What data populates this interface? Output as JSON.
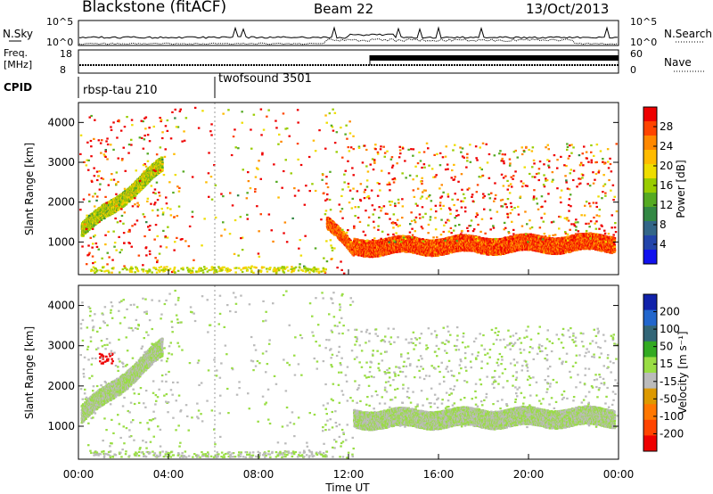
{
  "header": {
    "radar": "Blackstone (fitACF)",
    "beam": "Beam 22",
    "date": "13/Oct/2013"
  },
  "noise_panel": {
    "left_label": "N.Sky",
    "left_ticks": [
      "10^5",
      "10^0"
    ],
    "right_label": "N.Search",
    "right_ticks": [
      "10^5",
      "10^0"
    ]
  },
  "freq_panel": {
    "left_label_1": "Freq.",
    "left_label_2": "[MHz]",
    "left_ticks": [
      "18",
      "8"
    ],
    "right_label": "Nave",
    "right_ticks": [
      "60",
      "0"
    ]
  },
  "cpid_panel": {
    "label": "CPID",
    "modes": [
      {
        "name": "rbsp-tau 210",
        "start_hour": 0
      },
      {
        "name": "twofsound 3501",
        "start_hour": 6
      }
    ]
  },
  "x_axis": {
    "title": "Time UT",
    "ticks": [
      "00:00",
      "04:00",
      "08:00",
      "12:00",
      "16:00",
      "20:00",
      "00:00"
    ]
  },
  "colorbars": {
    "power": {
      "label": "Power [dB]",
      "ticks": [
        "28",
        "24",
        "20",
        "16",
        "12",
        "8",
        "4"
      ],
      "colors": [
        "#ee0000",
        "#ff4400",
        "#ff8800",
        "#ffbb00",
        "#eedd00",
        "#99cc00",
        "#55aa22",
        "#338844",
        "#336688",
        "#2244aa",
        "#1111ee"
      ]
    },
    "velocity": {
      "label": "Velocity [m s⁻¹]",
      "ticks": [
        "200",
        "100",
        "50",
        "15",
        "-15",
        "-50",
        "-100",
        "-200"
      ],
      "colors": [
        "#1122aa",
        "#2266cc",
        "#336677",
        "#33aa22",
        "#99dd44",
        "#bbbbbb",
        "#dd9900",
        "#ff7700",
        "#ff4400",
        "#ee0000"
      ]
    }
  },
  "chart_data": [
    {
      "type": "heatmap",
      "title": "Power",
      "ylabel": "Slant Range [km]",
      "xlabel": "Time UT",
      "xlim_hours": [
        0,
        24
      ],
      "ylim_km": [
        180,
        4500
      ],
      "y_ticks": [
        1000,
        2000,
        3000,
        4000
      ],
      "color_quantity": "Power [dB]",
      "color_range": [
        0,
        30
      ],
      "features": [
        {
          "desc": "band",
          "t_start": 0.1,
          "t_end": 3.7,
          "r_start": 1300,
          "r_end": 2950,
          "width_km": 180,
          "value": 16
        },
        {
          "desc": "band",
          "t_start": 11.0,
          "t_end": 12.2,
          "r_start": 1500,
          "r_end": 800,
          "width_km": 150,
          "value": 26
        },
        {
          "desc": "band",
          "t_start": 12.2,
          "t_end": 23.8,
          "r_start": 900,
          "r_end": 1000,
          "width_km": 200,
          "value": 27
        }
      ]
    },
    {
      "type": "heatmap",
      "title": "Velocity",
      "ylabel": "Slant Range [km]",
      "xlabel": "Time UT",
      "xlim_hours": [
        0,
        24
      ],
      "ylim_km": [
        180,
        4500
      ],
      "y_ticks": [
        1000,
        2000,
        3000,
        4000
      ],
      "color_quantity": "Velocity [m s⁻¹]",
      "color_range": [
        -200,
        200
      ],
      "features": [
        {
          "desc": "ground scatter band",
          "t_start": 0.1,
          "t_end": 3.7,
          "r_start": 1300,
          "r_end": 2950,
          "value": 0
        },
        {
          "desc": "ground scatter band",
          "t_start": 12.2,
          "t_end": 23.8,
          "r_start": 1200,
          "r_end": 1250,
          "value": 0
        },
        {
          "desc": "high velocity patch",
          "t_center": 1.2,
          "r_center": 2700,
          "value": -200
        }
      ]
    }
  ]
}
